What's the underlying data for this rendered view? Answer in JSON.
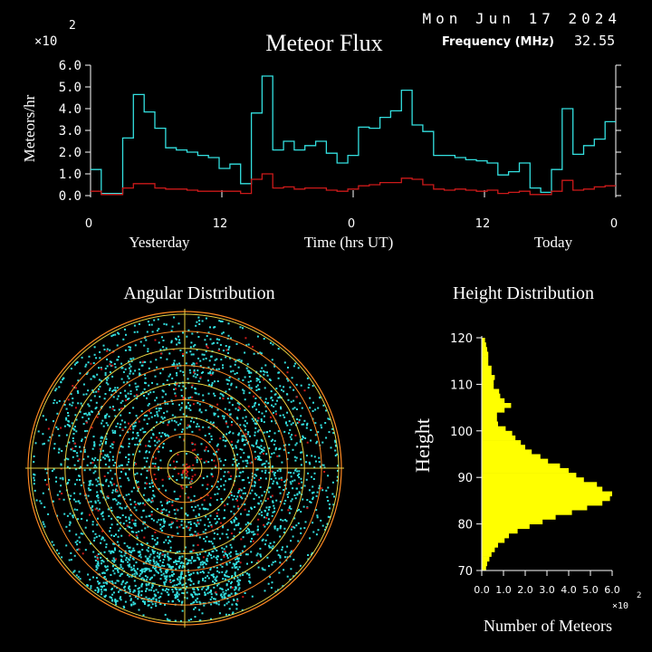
{
  "header": {
    "date": "Mon Jun 17 2024",
    "title": "Meteor Flux",
    "frequency_label": "Frequency (MHz)",
    "frequency_value": "32.55",
    "multiplier_base": "×10",
    "multiplier_exp": "2"
  },
  "colors": {
    "total": "#33e0e0",
    "red": "#cc1a1a",
    "axis": "#ffffff",
    "yellow": "#ffff00",
    "grid_orange": "#ff8822",
    "grid_yellow": "#e8d040"
  },
  "chart_data": [
    {
      "type": "line",
      "title": "Meteor Flux",
      "ylabel": "Meteors/hr",
      "xlabel": "Time (hrs UT)",
      "y_multiplier": "×10 2",
      "ylim": [
        0,
        6
      ],
      "xlim": [
        0,
        48
      ],
      "y_ticks": [
        "0.0",
        "1.0",
        "2.0",
        "3.0",
        "4.0",
        "5.0",
        "6.0"
      ],
      "x_ticks": [
        {
          "value": 0,
          "label": "0"
        },
        {
          "value": 12,
          "label": "12"
        },
        {
          "value": 24,
          "label": "0"
        },
        {
          "value": 36,
          "label": "12"
        },
        {
          "value": 48,
          "label": "0"
        }
      ],
      "day_labels": [
        {
          "value": 6.7,
          "label": "Yesterday"
        },
        {
          "value": 24,
          "label": "Time (hrs UT)"
        },
        {
          "value": 42.7,
          "label": "Today"
        }
      ],
      "series": [
        {
          "color": "#33e0e0",
          "step": true,
          "values": [
            1.2,
            0.1,
            0.1,
            2.65,
            4.65,
            3.85,
            3.1,
            2.2,
            2.1,
            2.0,
            1.85,
            1.75,
            1.25,
            1.45,
            0.55,
            3.8,
            5.5,
            2.1,
            2.5,
            2.1,
            2.3,
            2.5,
            1.95,
            1.5,
            1.85,
            3.15,
            3.1,
            3.6,
            3.9,
            4.85,
            3.25,
            2.95,
            1.85,
            1.85,
            1.75,
            1.65,
            1.6,
            1.5,
            0.95,
            1.1,
            1.5,
            0.35,
            0.15,
            1.2,
            4.0,
            1.9,
            2.3,
            2.6,
            3.4
          ]
        },
        {
          "color": "#cc1a1a",
          "step": true,
          "values": [
            0.2,
            0.05,
            0.05,
            0.35,
            0.55,
            0.55,
            0.35,
            0.3,
            0.3,
            0.25,
            0.2,
            0.2,
            0.2,
            0.2,
            0.1,
            0.75,
            1.0,
            0.35,
            0.4,
            0.3,
            0.35,
            0.35,
            0.25,
            0.2,
            0.3,
            0.45,
            0.5,
            0.6,
            0.6,
            0.8,
            0.75,
            0.5,
            0.3,
            0.25,
            0.3,
            0.25,
            0.2,
            0.25,
            0.1,
            0.15,
            0.2,
            0.05,
            0.05,
            0.2,
            0.7,
            0.25,
            0.3,
            0.4,
            0.45
          ]
        }
      ]
    },
    {
      "type": "scatter",
      "title": "Angular Distribution",
      "plot": "polar sky map",
      "rings": 9,
      "cyan_points": 2600,
      "red_points": 260
    },
    {
      "type": "bar",
      "orientation": "horizontal",
      "title": "Height Distribution",
      "ylabel": "Height",
      "xlabel": "Number of Meteors",
      "x_multiplier": "×10 2",
      "ylim": [
        70,
        120
      ],
      "xlim": [
        0,
        6
      ],
      "y_ticks": [
        "70",
        "80",
        "90",
        "100",
        "110",
        "120"
      ],
      "x_ticks": [
        "0.0",
        "1.0",
        "2.0",
        "3.0",
        "4.0",
        "5.0",
        "6.0"
      ],
      "heights": [
        70,
        71,
        72,
        73,
        74,
        75,
        76,
        77,
        78,
        79,
        80,
        81,
        82,
        83,
        84,
        85,
        86,
        87,
        88,
        89,
        90,
        91,
        92,
        93,
        94,
        95,
        96,
        97,
        98,
        99,
        100,
        101,
        102,
        103,
        104,
        105,
        106,
        107,
        108,
        109,
        110,
        111,
        112,
        113,
        114,
        115,
        116,
        117,
        118,
        119
      ],
      "values": [
        0.2,
        0.25,
        0.35,
        0.45,
        0.6,
        0.75,
        1.05,
        1.25,
        1.65,
        2.2,
        2.8,
        3.4,
        4.15,
        4.85,
        5.55,
        5.9,
        6.0,
        5.55,
        5.3,
        4.7,
        4.35,
        4.0,
        3.6,
        3.05,
        2.7,
        2.3,
        2.0,
        1.8,
        1.55,
        1.4,
        1.1,
        0.75,
        0.7,
        0.7,
        1.05,
        1.35,
        1.05,
        0.85,
        0.8,
        0.55,
        0.55,
        0.6,
        0.45,
        0.45,
        0.3,
        0.3,
        0.3,
        0.25,
        0.2,
        0.15
      ]
    }
  ]
}
